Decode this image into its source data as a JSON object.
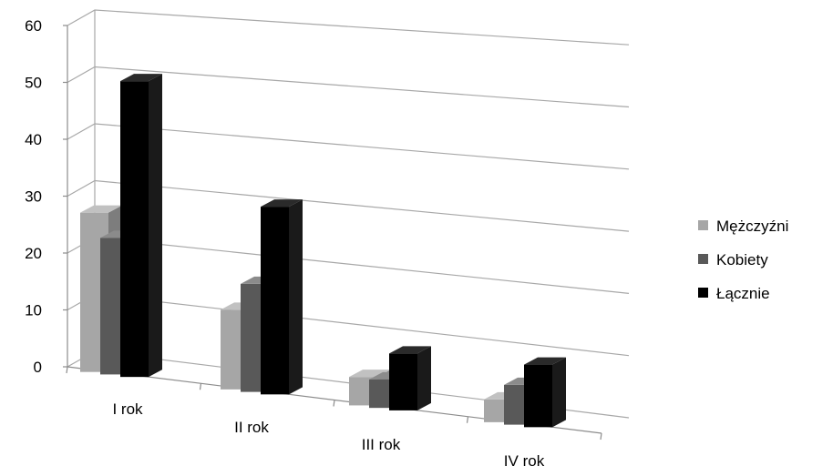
{
  "chart_data": {
    "type": "bar",
    "style": "3d-clustered-column",
    "categories": [
      "I rok",
      "II rok",
      "III rok",
      "IV rok"
    ],
    "series": [
      {
        "name": "Mężczyźni",
        "values": [
          28,
          14,
          5,
          4
        ],
        "color": "#a6a6a6"
      },
      {
        "name": "Kobiety",
        "values": [
          24,
          19,
          5,
          7
        ],
        "color": "#595959"
      },
      {
        "name": "Łącznie",
        "values": [
          52,
          33,
          10,
          11
        ],
        "color": "#000000"
      }
    ],
    "y_ticks": [
      "0",
      "10",
      "20",
      "30",
      "40",
      "50",
      "60"
    ],
    "ylim": [
      0,
      60
    ],
    "title": "",
    "xlabel": "",
    "ylabel": "",
    "grid": true,
    "legend_position": "right"
  }
}
